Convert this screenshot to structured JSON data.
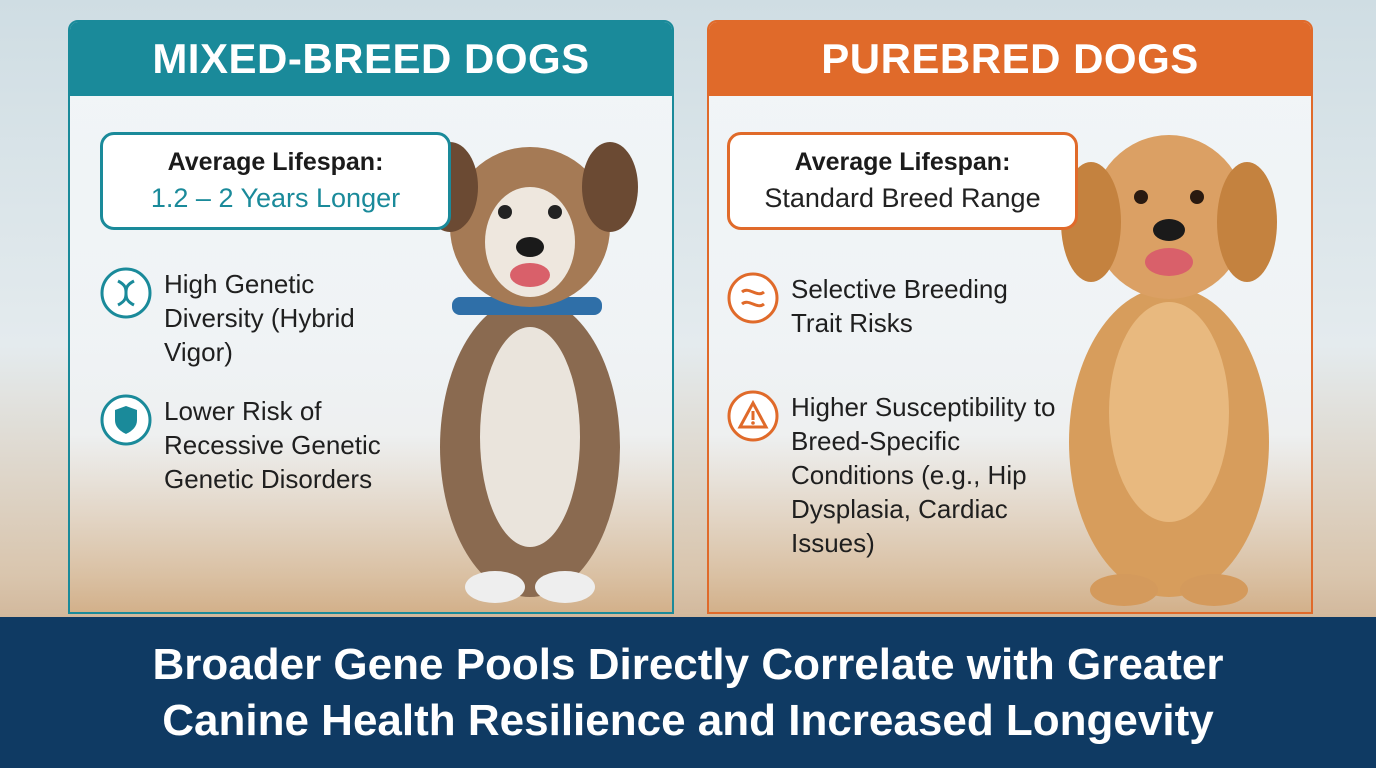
{
  "panels": [
    {
      "title": "MIXED-BREED DOGS",
      "lifespan": {
        "label": "Average Lifespan:",
        "value": "1.2 – 2 Years Longer"
      },
      "features": [
        "High Genetic Diversity (Hybrid Vigor)",
        "Lower Risk of Recessive Genetic Genetic Disorders"
      ]
    },
    {
      "title": "PUREBRED DOGS",
      "lifespan": {
        "label": "Average Lifespan:",
        "value": "Standard Breed Range"
      },
      "features": [
        "Selective Breeding Trait Risks",
        "Higher Susceptibility to Breed-Specific Conditions (e.g., Hip Dysplasia, Cardiac Issues)"
      ]
    }
  ],
  "footer": {
    "lines": [
      "Broader Gene Pools Directly Correlate with Greater",
      "Canine Health Resilience and Increased Longevity"
    ]
  }
}
